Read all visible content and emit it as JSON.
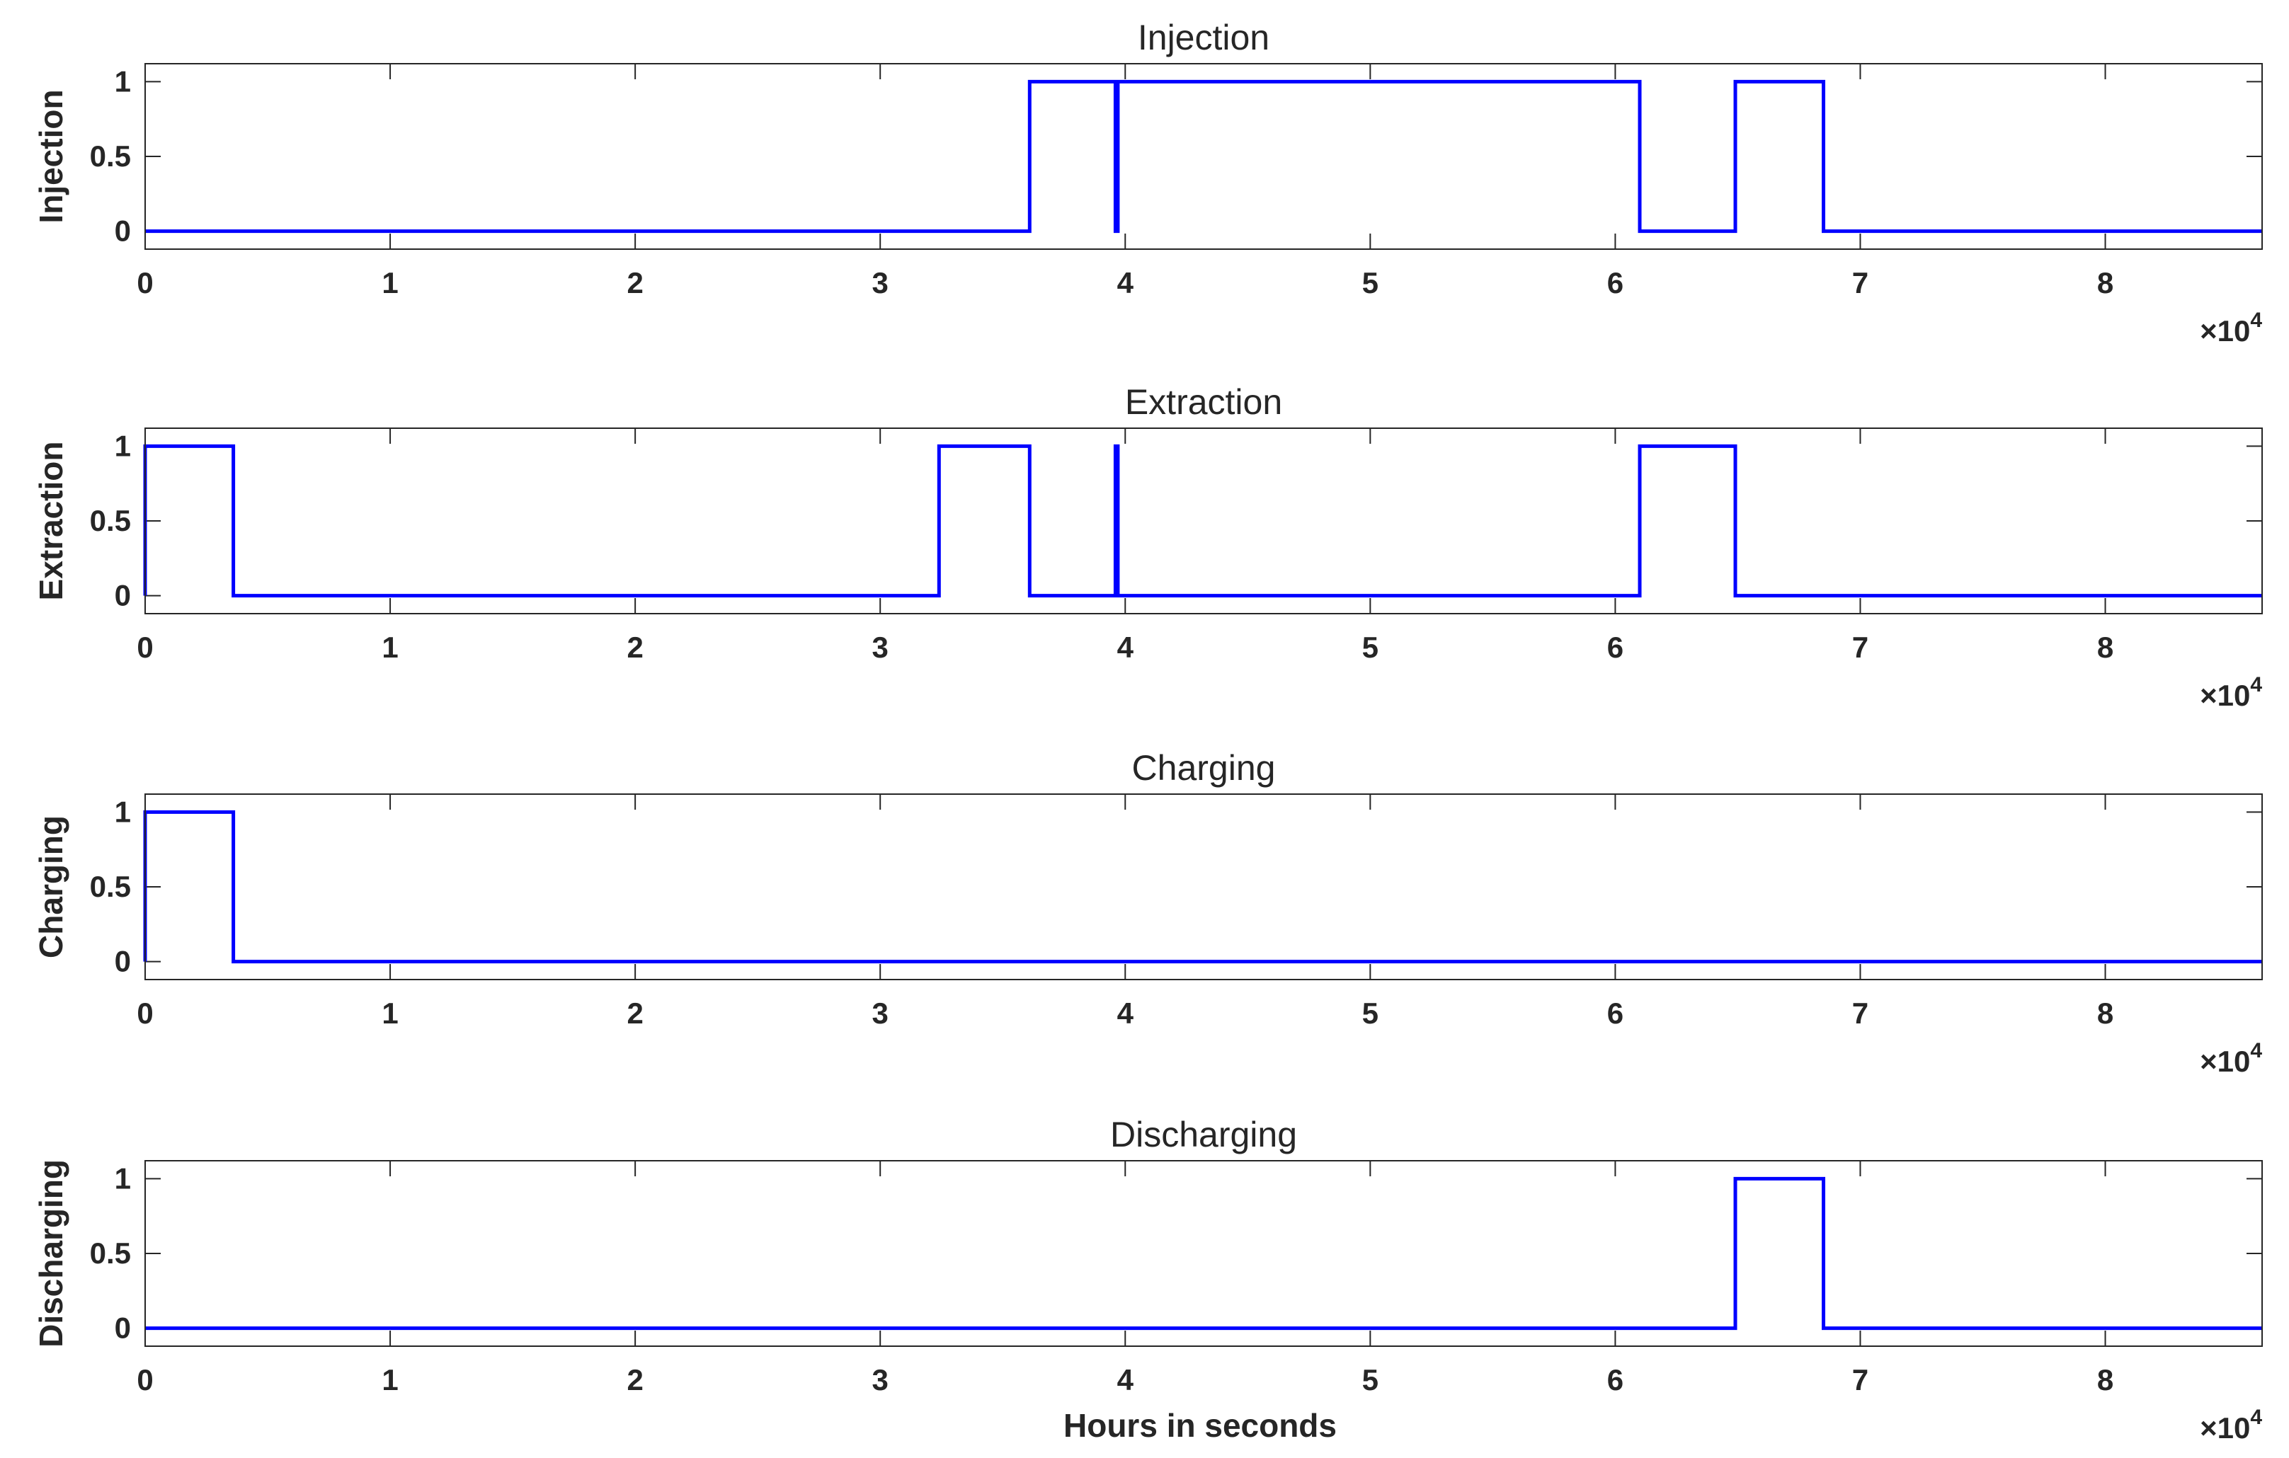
{
  "chart_data": [
    {
      "type": "line",
      "title": "Injection",
      "ylabel": "Injection",
      "xlabel": "",
      "xlim": [
        0,
        86400
      ],
      "ylim": [
        -0.12,
        1.12
      ],
      "xticks": [
        0,
        10000,
        20000,
        30000,
        40000,
        50000,
        60000,
        70000,
        80000
      ],
      "xtick_labels": [
        "0",
        "1",
        "2",
        "3",
        "4",
        "5",
        "6",
        "7",
        "8"
      ],
      "yticks": [
        0,
        0.5,
        1
      ],
      "ytick_labels": [
        "0",
        "0.5",
        "1"
      ],
      "x_exponent_base": "×10",
      "x_exponent": "4",
      "grid": false,
      "series": [
        {
          "color": "#0000ff",
          "x": [
            0,
            36100,
            36100,
            39600,
            39600,
            39700,
            39700,
            61000,
            61000,
            64900,
            64900,
            68500,
            68500,
            86400
          ],
          "y": [
            0,
            0,
            1,
            1,
            0,
            0,
            1,
            1,
            0,
            0,
            1,
            1,
            0,
            0
          ]
        }
      ]
    },
    {
      "type": "line",
      "title": "Extraction",
      "ylabel": "Extraction",
      "xlabel": "",
      "xlim": [
        0,
        86400
      ],
      "ylim": [
        -0.12,
        1.12
      ],
      "xticks": [
        0,
        10000,
        20000,
        30000,
        40000,
        50000,
        60000,
        70000,
        80000
      ],
      "xtick_labels": [
        "0",
        "1",
        "2",
        "3",
        "4",
        "5",
        "6",
        "7",
        "8"
      ],
      "yticks": [
        0,
        0.5,
        1
      ],
      "ytick_labels": [
        "0",
        "0.5",
        "1"
      ],
      "x_exponent_base": "×10",
      "x_exponent": "4",
      "grid": false,
      "series": [
        {
          "color": "#0000ff",
          "x": [
            0,
            0,
            3600,
            3600,
            32400,
            32400,
            36100,
            36100,
            39600,
            39600,
            39700,
            39700,
            61000,
            61000,
            64900,
            64900,
            86400
          ],
          "y": [
            0,
            1,
            1,
            0,
            0,
            1,
            1,
            0,
            0,
            1,
            1,
            0,
            0,
            1,
            1,
            0,
            0
          ]
        }
      ]
    },
    {
      "type": "line",
      "title": "Charging",
      "ylabel": "Charging",
      "xlabel": "",
      "xlim": [
        0,
        86400
      ],
      "ylim": [
        -0.12,
        1.12
      ],
      "xticks": [
        0,
        10000,
        20000,
        30000,
        40000,
        50000,
        60000,
        70000,
        80000
      ],
      "xtick_labels": [
        "0",
        "1",
        "2",
        "3",
        "4",
        "5",
        "6",
        "7",
        "8"
      ],
      "yticks": [
        0,
        0.5,
        1
      ],
      "ytick_labels": [
        "0",
        "0.5",
        "1"
      ],
      "x_exponent_base": "×10",
      "x_exponent": "4",
      "grid": false,
      "series": [
        {
          "color": "#0000ff",
          "x": [
            0,
            0,
            3600,
            3600,
            86400
          ],
          "y": [
            0,
            1,
            1,
            0,
            0
          ]
        }
      ]
    },
    {
      "type": "line",
      "title": "Discharging",
      "ylabel": "Discharging",
      "xlabel": "Hours in seconds",
      "xlim": [
        0,
        86400
      ],
      "ylim": [
        -0.12,
        1.12
      ],
      "xticks": [
        0,
        10000,
        20000,
        30000,
        40000,
        50000,
        60000,
        70000,
        80000
      ],
      "xtick_labels": [
        "0",
        "1",
        "2",
        "3",
        "4",
        "5",
        "6",
        "7",
        "8"
      ],
      "yticks": [
        0,
        0.5,
        1
      ],
      "ytick_labels": [
        "0",
        "0.5",
        "1"
      ],
      "x_exponent_base": "×10",
      "x_exponent": "4",
      "grid": false,
      "series": [
        {
          "color": "#0000ff",
          "x": [
            0,
            64900,
            64900,
            68500,
            68500,
            86400
          ],
          "y": [
            0,
            0,
            1,
            1,
            0,
            0
          ]
        }
      ]
    }
  ]
}
